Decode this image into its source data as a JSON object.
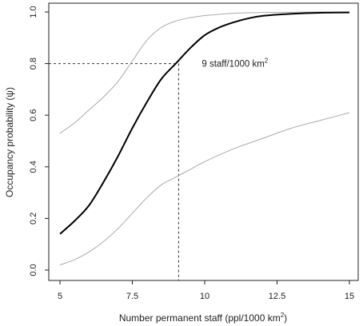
{
  "chart_data": {
    "type": "line",
    "xlabel": "Number permanent staff (ppl/1000 km",
    "xlabel_superscript": "2",
    "xlabel_suffix": ")",
    "ylabel": "Occupancy probability (ψ)",
    "xlim": [
      5,
      15
    ],
    "ylim": [
      0,
      1
    ],
    "x_ticks": [
      "5",
      "7.5",
      "10",
      "12.5",
      "15"
    ],
    "y_ticks": [
      "0.0",
      "0.2",
      "0.4",
      "0.6",
      "0.8",
      "1.0"
    ],
    "grid": false,
    "series": [
      {
        "role": "estimate",
        "color": "#000000",
        "x": [
          5,
          5.5,
          6,
          6.5,
          7,
          7.5,
          8,
          8.5,
          9,
          9.5,
          10,
          10.5,
          11,
          11.5,
          12,
          13,
          14,
          15
        ],
        "y": [
          0.14,
          0.19,
          0.25,
          0.34,
          0.44,
          0.55,
          0.65,
          0.74,
          0.8,
          0.86,
          0.91,
          0.94,
          0.96,
          0.975,
          0.985,
          0.993,
          0.997,
          0.998
        ]
      },
      {
        "role": "upper-ci",
        "color": "#aaaaaa",
        "x": [
          5,
          5.5,
          6,
          6.5,
          7,
          7.5,
          8,
          8.5,
          9,
          9.5,
          10,
          11,
          12,
          13,
          14,
          15
        ],
        "y": [
          0.53,
          0.57,
          0.62,
          0.67,
          0.73,
          0.81,
          0.89,
          0.94,
          0.965,
          0.978,
          0.986,
          0.995,
          0.998,
          0.999,
          1.0,
          1.0
        ]
      },
      {
        "role": "lower-ci",
        "color": "#aaaaaa",
        "x": [
          5,
          5.5,
          6,
          6.5,
          7,
          7.5,
          8,
          8.5,
          9,
          9.5,
          10,
          11,
          12,
          13,
          14,
          15
        ],
        "y": [
          0.02,
          0.04,
          0.07,
          0.11,
          0.16,
          0.22,
          0.28,
          0.33,
          0.36,
          0.39,
          0.42,
          0.47,
          0.51,
          0.55,
          0.58,
          0.61
        ]
      }
    ],
    "reference": {
      "x": 9.1,
      "y": 0.8
    },
    "annotation": {
      "text": "9 staff/1000 km",
      "superscript": "2",
      "x": 9.9,
      "y": 0.8
    }
  }
}
